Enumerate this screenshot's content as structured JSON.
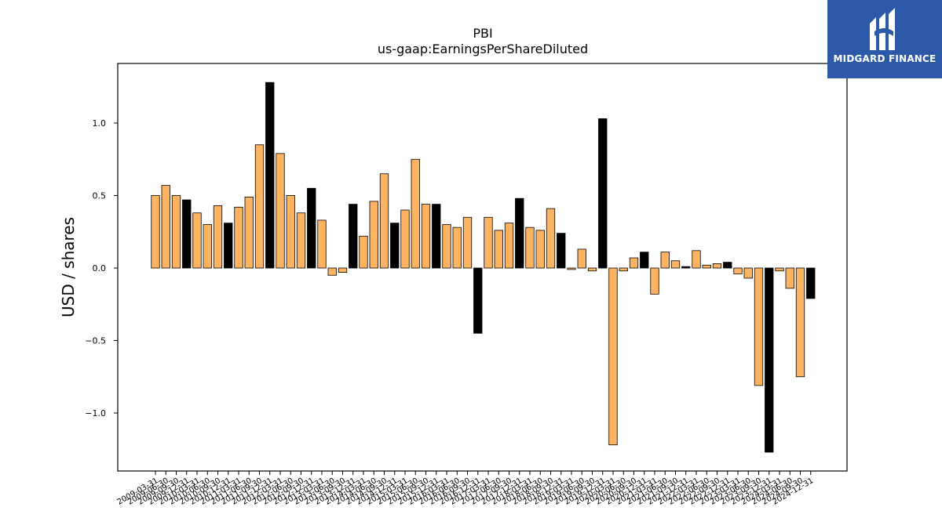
{
  "logo": {
    "text": "MIDGARD FINANCE",
    "icon": "midgard-logo-icon",
    "background": "#2d5aa8"
  },
  "chart_data": {
    "type": "bar",
    "title": "PBI",
    "subtitle": "us-gaap:EarningsPerShareDiluted",
    "ylabel": "USD / shares",
    "xlabel": "",
    "ylim": [
      -1.4,
      1.4
    ],
    "yticks": [
      -1.0,
      -0.5,
      0.0,
      0.5,
      1.0
    ],
    "grid": false,
    "colors": {
      "quarter": "#fdb462",
      "annual": "#000000",
      "edge": "#000000"
    },
    "categories": [
      "2009-03-31",
      "2009-06-30",
      "2009-09-30",
      "2009-12-31",
      "2010-03-31",
      "2010-06-30",
      "2010-09-30",
      "2010-12-31",
      "2011-03-31",
      "2011-06-30",
      "2011-09-30",
      "2011-12-31",
      "2012-03-31",
      "2012-06-30",
      "2012-09-30",
      "2012-12-31",
      "2013-03-31",
      "2013-06-30",
      "2013-09-30",
      "2013-12-31",
      "2014-03-31",
      "2014-06-30",
      "2014-09-30",
      "2014-12-31",
      "2015-03-31",
      "2015-06-30",
      "2015-09-30",
      "2015-12-31",
      "2016-03-31",
      "2016-06-30",
      "2016-09-30",
      "2016-12-31",
      "2017-03-31",
      "2017-06-30",
      "2017-09-30",
      "2017-12-31",
      "2018-03-31",
      "2018-06-30",
      "2018-09-30",
      "2018-12-31",
      "2019-03-31",
      "2019-06-30",
      "2019-09-30",
      "2019-12-31",
      "2020-03-31",
      "2020-06-30",
      "2020-09-30",
      "2020-12-31",
      "2021-03-31",
      "2021-06-30",
      "2021-09-30",
      "2021-12-31",
      "2022-03-31",
      "2022-06-30",
      "2022-09-30",
      "2022-12-31",
      "2023-03-31",
      "2023-06-30",
      "2023-09-30",
      "2023-12-31",
      "2024-03-31",
      "2024-06-30",
      "2024-09-30",
      "2024-12-31"
    ],
    "values": [
      0.5,
      0.57,
      0.5,
      0.47,
      0.38,
      0.3,
      0.43,
      0.31,
      0.42,
      0.49,
      0.85,
      1.28,
      0.79,
      0.5,
      0.38,
      0.55,
      0.33,
      -0.05,
      -0.03,
      0.44,
      0.22,
      0.46,
      0.65,
      0.31,
      0.4,
      0.75,
      0.44,
      0.44,
      0.3,
      0.28,
      0.35,
      -0.45,
      0.35,
      0.26,
      0.31,
      0.48,
      0.28,
      0.26,
      0.41,
      0.24,
      -0.01,
      0.13,
      -0.02,
      1.03,
      -1.22,
      -0.02,
      0.07,
      0.11,
      -0.18,
      0.11,
      0.05,
      0.01,
      0.12,
      0.02,
      0.03,
      0.04,
      -0.04,
      -0.07,
      -0.81,
      -1.27,
      -0.02,
      -0.14,
      -0.75,
      -0.21
    ],
    "annual": [
      false,
      false,
      false,
      true,
      false,
      false,
      false,
      true,
      false,
      false,
      false,
      true,
      false,
      false,
      false,
      true,
      false,
      false,
      false,
      true,
      false,
      false,
      false,
      true,
      false,
      false,
      false,
      true,
      false,
      false,
      false,
      true,
      false,
      false,
      false,
      true,
      false,
      false,
      false,
      true,
      false,
      false,
      false,
      true,
      false,
      false,
      false,
      true,
      false,
      false,
      false,
      true,
      false,
      false,
      false,
      true,
      false,
      false,
      false,
      true,
      false,
      false,
      false,
      true
    ]
  }
}
